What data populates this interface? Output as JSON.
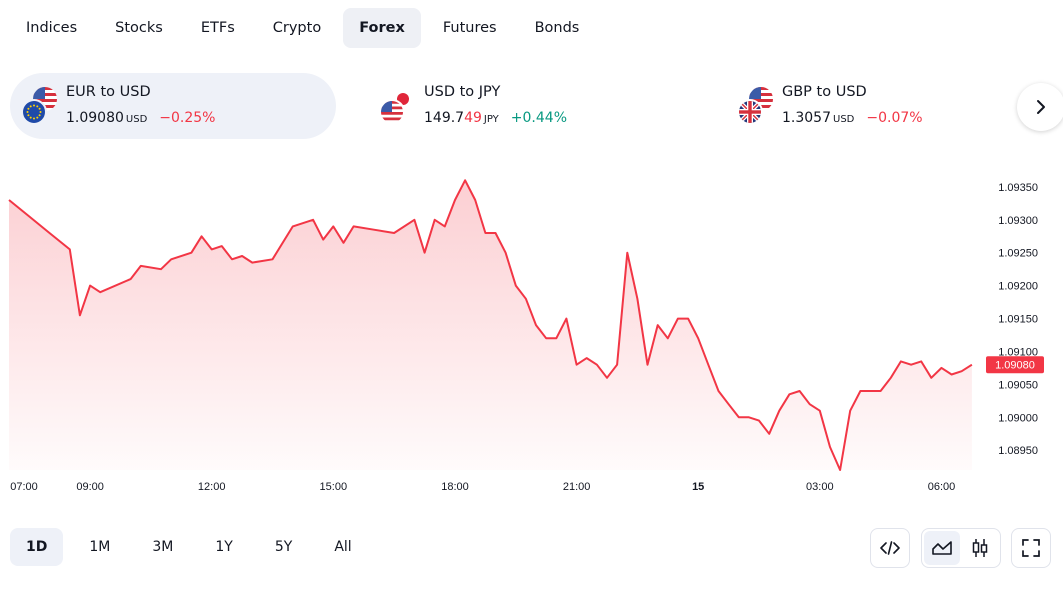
{
  "tabs": [
    {
      "label": "Indices"
    },
    {
      "label": "Stocks"
    },
    {
      "label": "ETFs"
    },
    {
      "label": "Crypto"
    },
    {
      "label": "Forex"
    },
    {
      "label": "Futures"
    },
    {
      "label": "Bonds"
    }
  ],
  "active_tab": "Forex",
  "pairs": [
    {
      "name": "EUR to USD",
      "price": "1.09080",
      "price_main": "1.09080",
      "price_tail": "",
      "unit": "USD",
      "change": "−0.25%",
      "direction": "down",
      "flags": [
        "us-flag-icon",
        "eu-flag-icon"
      ]
    },
    {
      "name": "USD to JPY",
      "price": "149.749",
      "price_main": "149.7",
      "price_tail": "49",
      "unit": "JPY",
      "change": "+0.44%",
      "direction": "up",
      "flags": [
        "jp-flag-icon",
        "us-flag-icon"
      ]
    },
    {
      "name": "GBP to USD",
      "price": "1.3057",
      "price_main": "1.3057",
      "price_tail": "",
      "unit": "USD",
      "change": "−0.07%",
      "direction": "down",
      "flags": [
        "us-flag-icon",
        "uk-flag-icon"
      ]
    }
  ],
  "colors": {
    "down": "#f23645",
    "up": "#089981",
    "accent_bg": "#eef1f8",
    "line": "#f23645",
    "text": "#131722",
    "axis_text": "#131722"
  },
  "chart_data": {
    "type": "area",
    "series": [
      {
        "x": [
          "07:00",
          "07:30",
          "08:00",
          "08:30",
          "08:45",
          "09:00",
          "09:15",
          "10:00",
          "10:15",
          "10:45",
          "11:00",
          "11:30",
          "11:45",
          "12:00",
          "12:15",
          "12:30",
          "12:45",
          "13:00",
          "13:30",
          "14:00",
          "14:30",
          "14:45",
          "15:00",
          "15:15",
          "15:30",
          "16:00",
          "16:30",
          "17:00",
          "17:15",
          "17:30",
          "17:45",
          "18:00",
          "18:15",
          "18:30",
          "18:45",
          "19:00",
          "19:15",
          "19:30",
          "19:45",
          "20:00",
          "20:15",
          "20:30",
          "20:45",
          "21:00",
          "21:15",
          "21:30",
          "21:45",
          "22:00",
          "22:15",
          "22:30",
          "22:45",
          "23:00",
          "23:15",
          "23:30",
          "23:45",
          "00:00",
          "00:15",
          "00:30",
          "00:45",
          "01:00",
          "01:15",
          "01:30",
          "01:45",
          "02:00",
          "02:15",
          "02:30",
          "02:45",
          "03:00",
          "03:15",
          "03:30",
          "03:45",
          "04:00",
          "04:15",
          "04:30",
          "04:45",
          "05:00",
          "05:15",
          "05:30",
          "05:45",
          "06:00",
          "06:15",
          "06:30",
          "06:45"
        ],
        "values": [
          1.0933,
          1.09305,
          1.0928,
          1.09255,
          1.09155,
          1.092,
          1.0919,
          1.0921,
          1.0923,
          1.09225,
          1.0924,
          1.0925,
          1.09275,
          1.09255,
          1.0926,
          1.0924,
          1.09245,
          1.09235,
          1.0924,
          1.0929,
          1.093,
          1.0927,
          1.0929,
          1.09265,
          1.0929,
          1.09285,
          1.0928,
          1.093,
          1.0925,
          1.093,
          1.0929,
          1.0933,
          1.0936,
          1.0933,
          1.0928,
          1.0928,
          1.0925,
          1.092,
          1.0918,
          1.0914,
          1.0912,
          1.0912,
          1.0915,
          1.0908,
          1.0909,
          1.0908,
          1.0906,
          1.0908,
          1.0925,
          1.0918,
          1.0908,
          1.0914,
          1.0912,
          1.0915,
          1.0915,
          1.0912,
          1.0908,
          1.0904,
          1.0902,
          1.09,
          1.09,
          1.08995,
          1.08975,
          1.0901,
          1.09035,
          1.0904,
          1.0902,
          1.0901,
          1.08955,
          1.0892,
          1.0901,
          1.0904,
          1.0904,
          1.0904,
          1.0906,
          1.09085,
          1.0908,
          1.09085,
          1.0906,
          1.09075,
          1.09065,
          1.0907,
          1.0908
        ]
      }
    ],
    "y_ticks": [
      "1.09350",
      "1.09300",
      "1.09250",
      "1.09200",
      "1.09150",
      "1.09100",
      "1.09050",
      "1.09000",
      "1.08950"
    ],
    "x_ticks": [
      "07:00",
      "09:00",
      "12:00",
      "15:00",
      "18:00",
      "21:00",
      "15",
      "03:00",
      "06:00"
    ],
    "ylim": [
      1.0892,
      1.09365
    ],
    "last_value_label": "1.09080",
    "grid": false,
    "line_color": "#f23645"
  },
  "ranges": [
    {
      "label": "1D"
    },
    {
      "label": "1M"
    },
    {
      "label": "3M"
    },
    {
      "label": "1Y"
    },
    {
      "label": "5Y"
    },
    {
      "label": "All"
    }
  ],
  "active_range": "1D",
  "tools": {
    "embed_icon": "embed-code-icon",
    "area_icon": "area-chart-icon",
    "candle_icon": "candlestick-icon",
    "fullscreen_icon": "fullscreen-icon",
    "active_chart_style": "area"
  }
}
